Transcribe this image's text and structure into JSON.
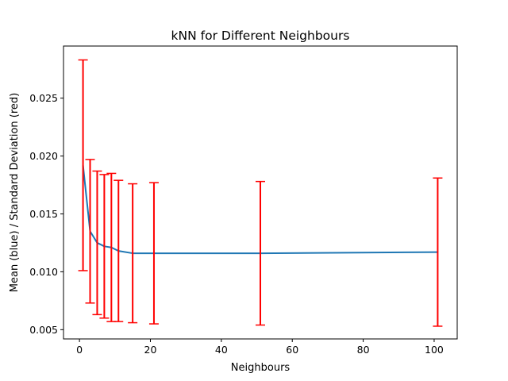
{
  "chart_data": {
    "type": "line",
    "title": "kNN for Different Neighbours",
    "xlabel": "Neighbours",
    "ylabel": "Mean (blue) / Standard Deviation (red)",
    "xlim": [
      -4.5,
      106.5
    ],
    "ylim": [
      0.0042,
      0.0295
    ],
    "x_ticks": [
      {
        "value": 0,
        "label": "0"
      },
      {
        "value": 20,
        "label": "20"
      },
      {
        "value": 40,
        "label": "40"
      },
      {
        "value": 60,
        "label": "60"
      },
      {
        "value": 80,
        "label": "80"
      },
      {
        "value": 100,
        "label": "100"
      }
    ],
    "y_ticks": [
      {
        "value": 0.005,
        "label": "0.005"
      },
      {
        "value": 0.01,
        "label": "0.010"
      },
      {
        "value": 0.015,
        "label": "0.015"
      },
      {
        "value": 0.02,
        "label": "0.020"
      },
      {
        "value": 0.025,
        "label": "0.025"
      }
    ],
    "grid": false,
    "series": [
      {
        "color": "#1f77b4",
        "x": [
          1,
          3,
          5,
          7,
          9,
          11,
          15,
          21,
          51,
          101
        ],
        "mean": [
          0.0192,
          0.0135,
          0.0125,
          0.0122,
          0.0121,
          0.0118,
          0.0116,
          0.0116,
          0.0116,
          0.0117
        ],
        "std": [
          0.0091,
          0.0062,
          0.0062,
          0.0062,
          0.0064,
          0.0061,
          0.006,
          0.0061,
          0.0062,
          0.0064
        ],
        "error_color": "#ff0000"
      }
    ]
  }
}
